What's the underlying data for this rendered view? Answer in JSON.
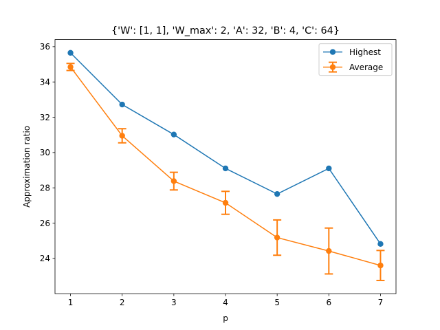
{
  "chart_data": {
    "type": "line",
    "title": "{'W': [1, 1], 'W_max': 2, 'A': 32, 'B': 4, 'C': 64}",
    "xlabel": "p",
    "ylabel": "Approximation ratio",
    "x": [
      1,
      2,
      3,
      4,
      5,
      6,
      7
    ],
    "xlim": [
      0.7,
      7.3
    ],
    "ylim": [
      22.0,
      36.4
    ],
    "xticks": [
      "1",
      "2",
      "3",
      "4",
      "5",
      "6",
      "7"
    ],
    "yticks": [
      "24",
      "26",
      "28",
      "30",
      "32",
      "34",
      "36"
    ],
    "grid": false,
    "legend_position": "top-right",
    "series": [
      {
        "name": "Highest",
        "color": "#1f77b4",
        "values": [
          35.65,
          32.72,
          31.02,
          29.1,
          27.65,
          29.1,
          24.82
        ],
        "errors": null
      },
      {
        "name": "Average",
        "color": "#ff7f0e",
        "values": [
          34.85,
          30.95,
          28.38,
          27.15,
          25.18,
          24.42,
          23.6
        ],
        "errors": [
          0.2,
          0.4,
          0.5,
          0.65,
          1.0,
          1.3,
          0.85
        ]
      }
    ]
  }
}
